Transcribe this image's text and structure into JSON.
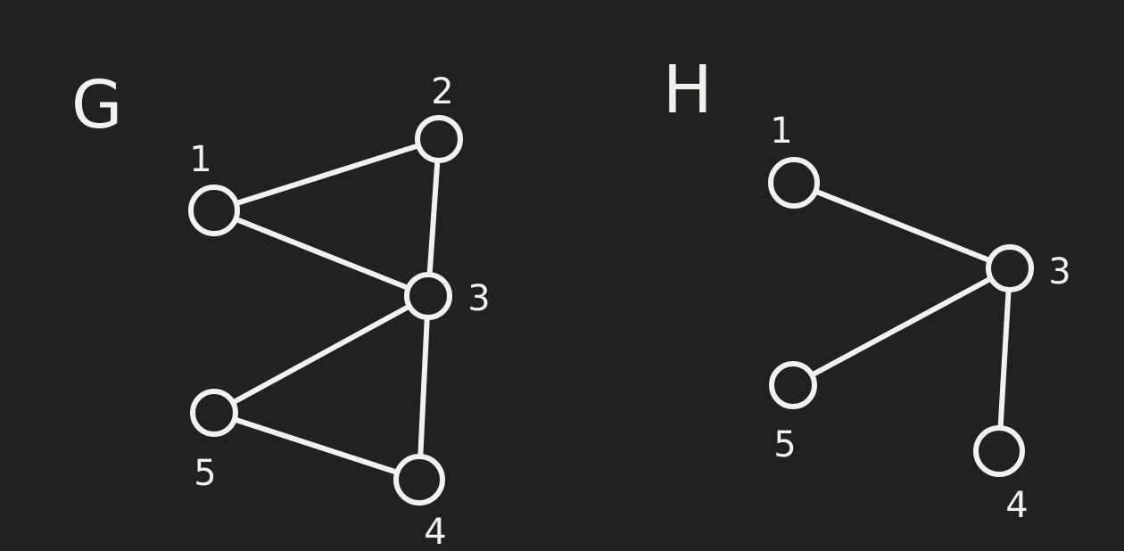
{
  "colors": {
    "background": "#222120",
    "stroke": "#f2f1ee"
  },
  "graphs": [
    {
      "id": "G",
      "title": "G",
      "nodes": [
        {
          "id": "1",
          "label": "1"
        },
        {
          "id": "2",
          "label": "2"
        },
        {
          "id": "3",
          "label": "3"
        },
        {
          "id": "4",
          "label": "4"
        },
        {
          "id": "5",
          "label": "5"
        }
      ],
      "edges": [
        {
          "from": "1",
          "to": "2"
        },
        {
          "from": "1",
          "to": "3"
        },
        {
          "from": "2",
          "to": "3"
        },
        {
          "from": "3",
          "to": "5"
        },
        {
          "from": "3",
          "to": "4"
        },
        {
          "from": "5",
          "to": "4"
        }
      ]
    },
    {
      "id": "H",
      "title": "H",
      "nodes": [
        {
          "id": "1",
          "label": "1"
        },
        {
          "id": "3",
          "label": "3"
        },
        {
          "id": "4",
          "label": "4"
        },
        {
          "id": "5",
          "label": "5"
        }
      ],
      "edges": [
        {
          "from": "1",
          "to": "3"
        },
        {
          "from": "3",
          "to": "5"
        },
        {
          "from": "3",
          "to": "4"
        }
      ]
    }
  ]
}
